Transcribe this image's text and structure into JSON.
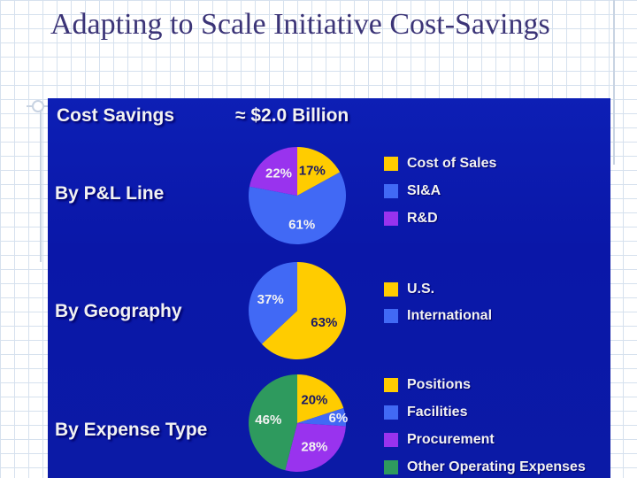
{
  "slide": {
    "title": "Adapting to Scale Initiative Cost-Savings"
  },
  "panel": {
    "header_left": "Cost Savings",
    "header_right": "≈ $2.0 Billion"
  },
  "colors": {
    "yellow": "#ffcc00",
    "blue": "#4169f5",
    "purple": "#9933ee",
    "green": "#2e9a5e",
    "background": "#0b1aa6"
  },
  "chart_data": [
    {
      "type": "pie",
      "title": "By P&L Line",
      "categories": [
        "Cost of Sales",
        "SI&A",
        "R&D"
      ],
      "values": [
        17,
        61,
        22
      ],
      "labels": [
        "17%",
        "61%",
        "22%"
      ],
      "colors": [
        "#ffcc00",
        "#4169f5",
        "#9933ee"
      ]
    },
    {
      "type": "pie",
      "title": "By Geography",
      "categories": [
        "U.S.",
        "International"
      ],
      "values": [
        63,
        37
      ],
      "labels": [
        "63%",
        "37%"
      ],
      "colors": [
        "#ffcc00",
        "#4169f5"
      ]
    },
    {
      "type": "pie",
      "title": "By Expense Type",
      "categories": [
        "Positions",
        "Facilities",
        "Procurement",
        "Other Operating Expenses"
      ],
      "values": [
        20,
        6,
        28,
        46
      ],
      "labels": [
        "20%",
        "6%",
        "28%",
        "46%"
      ],
      "colors": [
        "#ffcc00",
        "#4169f5",
        "#9933ee",
        "#2e9a5e"
      ]
    }
  ]
}
